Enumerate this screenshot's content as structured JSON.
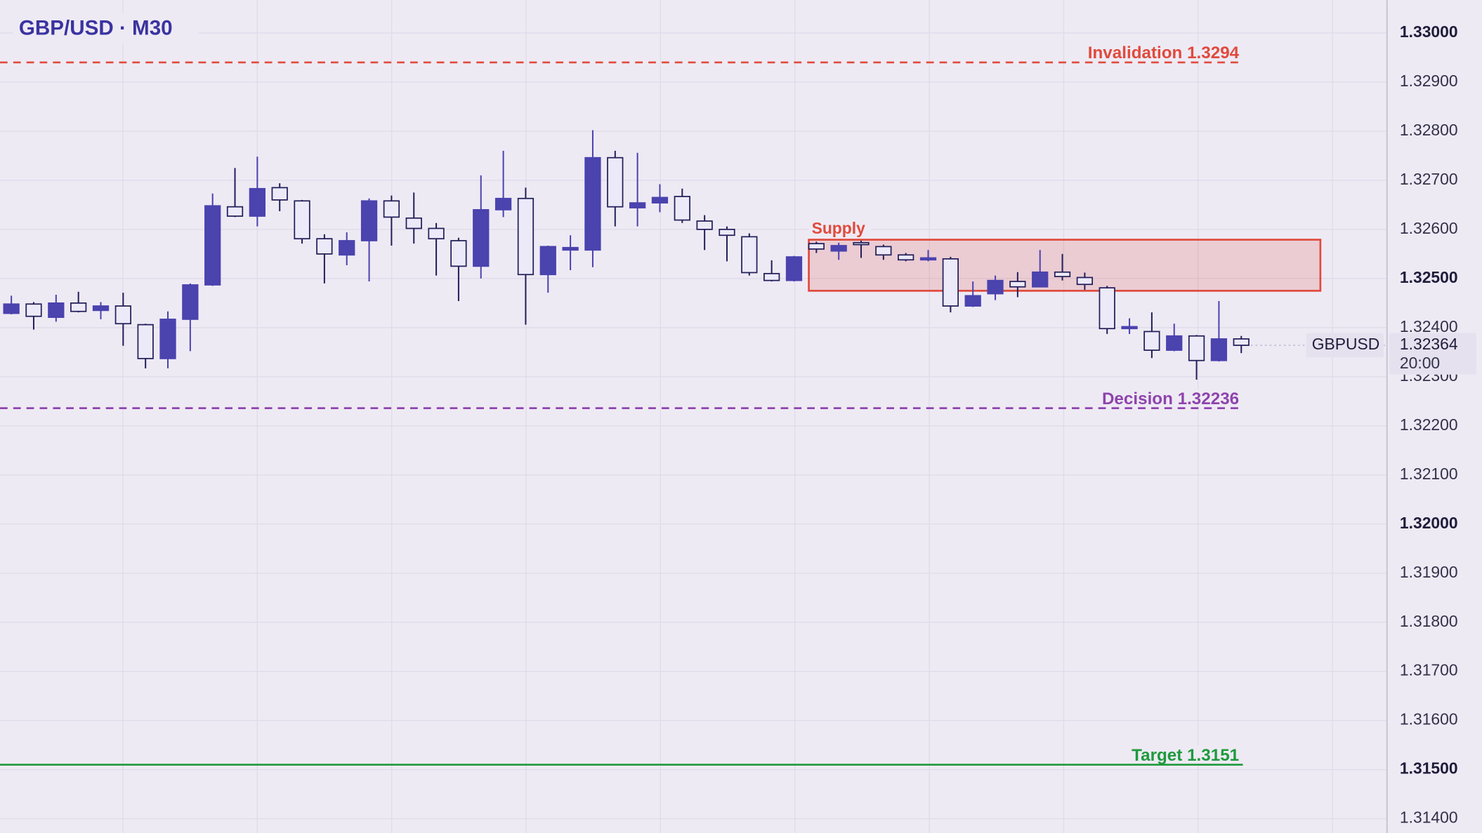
{
  "chart_data": {
    "type": "candlestick",
    "title": "GBP/USD · M30",
    "symbol": "GBPUSD",
    "open": [
      1.32429,
      1.32448,
      1.32421,
      1.3245,
      1.32435,
      1.32444,
      1.32406,
      1.32337,
      1.32417,
      1.32487,
      1.32646,
      1.32627,
      1.32685,
      1.32658,
      1.32581,
      1.32548,
      1.32577,
      1.32658,
      1.32623,
      1.32602,
      1.32577,
      1.32525,
      1.3264,
      1.32663,
      1.32508,
      1.32558,
      1.32558,
      1.32746,
      1.32644,
      1.32654,
      1.32667,
      1.32617,
      1.326,
      1.32585,
      1.3251,
      1.32496,
      1.32571,
      1.32556,
      1.32573,
      1.32565,
      1.32548,
      1.32538,
      1.3254,
      1.32444,
      1.32469,
      1.32494,
      1.32483,
      1.32513,
      1.32502,
      1.32481,
      1.32398,
      1.32392,
      1.32354,
      1.32383,
      1.32333,
      1.32377
    ],
    "high": [
      1.32465,
      1.32452,
      1.32467,
      1.32473,
      1.32452,
      1.32471,
      1.32408,
      1.32433,
      1.3249,
      1.32673,
      1.32725,
      1.32748,
      1.32694,
      1.3266,
      1.3259,
      1.32594,
      1.32663,
      1.32669,
      1.32675,
      1.32613,
      1.32583,
      1.3271,
      1.3276,
      1.32685,
      1.32567,
      1.32588,
      1.32802,
      1.3276,
      1.32756,
      1.32692,
      1.32683,
      1.32629,
      1.32606,
      1.32592,
      1.32537,
      1.32546,
      1.32575,
      1.32573,
      1.32577,
      1.32569,
      1.32552,
      1.32558,
      1.32544,
      1.32494,
      1.32506,
      1.32513,
      1.32558,
      1.3255,
      1.32512,
      1.32485,
      1.32419,
      1.32431,
      1.32408,
      1.32385,
      1.32454,
      1.32383
    ],
    "low": [
      1.32427,
      1.32396,
      1.32412,
      1.32431,
      1.32417,
      1.32363,
      1.32317,
      1.32317,
      1.32352,
      1.32485,
      1.32625,
      1.32606,
      1.32637,
      1.32571,
      1.3249,
      1.32527,
      1.32494,
      1.32567,
      1.32571,
      1.32506,
      1.32454,
      1.325,
      1.32625,
      1.32406,
      1.32471,
      1.32517,
      1.32523,
      1.32606,
      1.32606,
      1.32635,
      1.32613,
      1.32558,
      1.32535,
      1.32506,
      1.32494,
      1.32494,
      1.32552,
      1.32538,
      1.32542,
      1.32538,
      1.32535,
      1.32535,
      1.32431,
      1.32442,
      1.32456,
      1.32462,
      1.32483,
      1.32496,
      1.32477,
      1.32387,
      1.32387,
      1.32338,
      1.32352,
      1.32294,
      1.32331,
      1.32348
    ],
    "close": [
      1.32448,
      1.32423,
      1.3245,
      1.32433,
      1.32444,
      1.32408,
      1.32337,
      1.32417,
      1.32487,
      1.32648,
      1.32627,
      1.32683,
      1.3266,
      1.32581,
      1.3255,
      1.32577,
      1.32658,
      1.32625,
      1.32602,
      1.32581,
      1.32525,
      1.3264,
      1.32663,
      1.32508,
      1.32565,
      1.32563,
      1.32746,
      1.32646,
      1.32654,
      1.32665,
      1.32619,
      1.326,
      1.32588,
      1.32512,
      1.32496,
      1.32544,
      1.3256,
      1.32567,
      1.32569,
      1.32548,
      1.32538,
      1.32542,
      1.32444,
      1.32465,
      1.32496,
      1.32483,
      1.32513,
      1.32504,
      1.32488,
      1.32398,
      1.32402,
      1.32354,
      1.32383,
      1.32333,
      1.32377,
      1.32364
    ],
    "up_color": "#4b43ae",
    "down_color": "#eceaf8",
    "ylim": [
      1.31371,
      1.33067
    ],
    "yticks": [
      {
        "value": 1.314,
        "label": "1.31400"
      },
      {
        "value": 1.315,
        "label": "1.31500"
      },
      {
        "value": 1.316,
        "label": "1.31600"
      },
      {
        "value": 1.317,
        "label": "1.31700"
      },
      {
        "value": 1.318,
        "label": "1.31800"
      },
      {
        "value": 1.319,
        "label": "1.31900"
      },
      {
        "value": 1.32,
        "label": "1.32000"
      },
      {
        "value": 1.321,
        "label": "1.32100"
      },
      {
        "value": 1.322,
        "label": "1.32200"
      },
      {
        "value": 1.323,
        "label": "1.32300"
      },
      {
        "value": 1.324,
        "label": "1.32400"
      },
      {
        "value": 1.325,
        "label": "1.32500"
      },
      {
        "value": 1.326,
        "label": "1.32600"
      },
      {
        "value": 1.327,
        "label": "1.32700"
      },
      {
        "value": 1.328,
        "label": "1.32800"
      },
      {
        "value": 1.329,
        "label": "1.32900"
      },
      {
        "value": 1.33,
        "label": "1.33000"
      }
    ],
    "grid": true,
    "levels": [
      {
        "name": "Invalidation 1.3294",
        "value": 1.3294,
        "color": "#e04a3c",
        "style": "dashed"
      },
      {
        "name": "Decision 1.32236",
        "value": 1.32236,
        "color": "#8e44ad",
        "style": "dashed"
      },
      {
        "name": "Target 1.3151",
        "value": 1.3151,
        "color": "#1e9a3c",
        "style": "solid"
      }
    ],
    "zone": {
      "label": "Supply",
      "top": 1.32579,
      "bottom": 1.32475,
      "color": "#e04a3c"
    },
    "last_price": {
      "value": 1.32364,
      "label": "1.32364"
    },
    "countdown": "20:00"
  }
}
